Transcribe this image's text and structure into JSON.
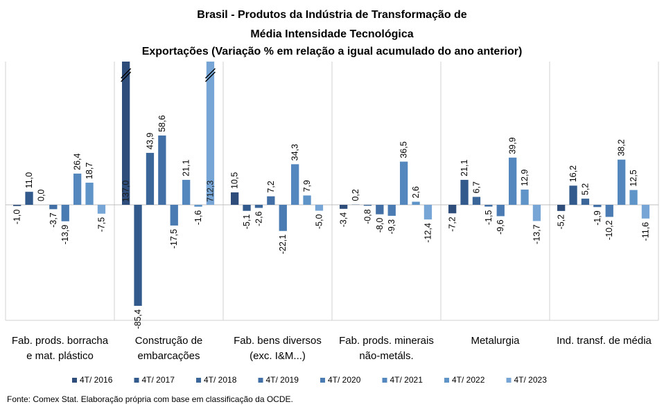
{
  "chart_data": {
    "type": "bar",
    "title": [
      "Brasil - Produtos da Indústria de Transformação de",
      "Média Intensidade Tecnológica",
      "Exportações (Variação % em relação a igual acumulado do ano anterior)"
    ],
    "categories": [
      [
        "Fab. prods. borracha",
        "e mat. plástico"
      ],
      [
        "Construção de",
        "embarcações"
      ],
      [
        "Fab. bens diversos",
        "(exc. I&M...)"
      ],
      [
        "Fab. prods. minerais",
        "não-metáls."
      ],
      [
        "Metalurgia"
      ],
      [
        "Ind. transf. de média"
      ]
    ],
    "series": [
      {
        "name": "4T/ 2016",
        "color": "#2e4d7b",
        "values": [
          -1.0,
          137.0,
          10.5,
          -3.4,
          -7.2,
          -5.2
        ],
        "labels": [
          "-1,0",
          "137,0",
          "10,5",
          "-3,4",
          "-7,2",
          "-5,2"
        ]
      },
      {
        "name": "4T/ 2017",
        "color": "#335a8c",
        "values": [
          11.0,
          -85.4,
          -5.1,
          0.2,
          21.1,
          16.2
        ],
        "labels": [
          "11,0",
          "-85,4",
          "-5,1",
          "0,2",
          "21,1",
          "16,2"
        ]
      },
      {
        "name": "4T/ 2018",
        "color": "#3a6699",
        "values": [
          0.0,
          43.9,
          -2.6,
          -0.8,
          6.7,
          5.2
        ],
        "labels": [
          "0,0",
          "43,9",
          "-2,6",
          "-0,8",
          "6,7",
          "5,2"
        ]
      },
      {
        "name": "4T/ 2019",
        "color": "#4270a6",
        "values": [
          -3.7,
          58.6,
          7.2,
          -8.0,
          -1.5,
          -1.9
        ],
        "labels": [
          "-3,7",
          "58,6",
          "7,2",
          "-8,0",
          "-1,5",
          "-1,9"
        ]
      },
      {
        "name": "4T/ 2020",
        "color": "#4a7bb2",
        "values": [
          -13.9,
          -17.5,
          -22.1,
          -9.3,
          -9.6,
          -10.2
        ],
        "labels": [
          "-13,9",
          "-17,5",
          "-22,1",
          "-9,3",
          "-9,6",
          "-10,2"
        ]
      },
      {
        "name": "4T/ 2021",
        "color": "#5387be",
        "values": [
          26.4,
          21.1,
          34.3,
          36.5,
          39.9,
          38.2
        ],
        "labels": [
          "26,4",
          "21,1",
          "34,3",
          "36,5",
          "39,9",
          "38,2"
        ]
      },
      {
        "name": "4T/ 2022",
        "color": "#5f94c9",
        "values": [
          18.7,
          -1.6,
          7.9,
          2.6,
          12.9,
          12.5
        ],
        "labels": [
          "18,7",
          "-1,6",
          "7,9",
          "2,6",
          "12,9",
          "12,5"
        ]
      },
      {
        "name": "4T/ 2023",
        "color": "#77a6d6",
        "values": [
          -7.5,
          712.3,
          -5.0,
          -12.4,
          -13.7,
          -11.6
        ],
        "labels": [
          "-7,5",
          "712,3",
          "-5,0",
          "-12,4",
          "-13,7",
          "-11,6"
        ]
      }
    ],
    "ylim": [
      -100,
      90
    ],
    "axis_break": true,
    "grid": false,
    "legend": "bottom"
  },
  "source": "Fonte: Comex Stat. Elaboração própria com base em classificação da OCDE."
}
